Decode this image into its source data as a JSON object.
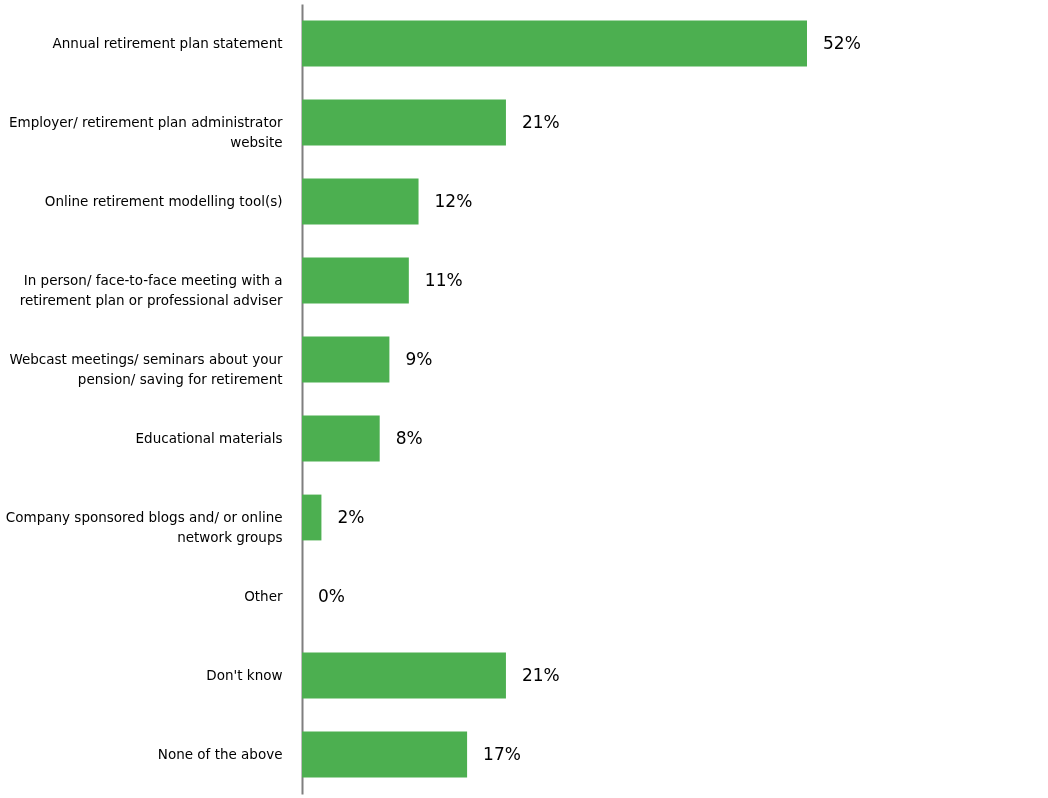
{
  "chart_data": {
    "type": "bar",
    "orientation": "horizontal",
    "categories": [
      "Annual retirement plan statement",
      "Employer/ retirement plan administrator website",
      "Online retirement modelling tool(s)",
      "In person/ face-to-face meeting with a retirement plan or professional adviser",
      "Webcast meetings/ seminars about your pension/ saving for retirement",
      "Educational materials",
      "Company sponsored blogs and/ or online network groups",
      "Other",
      "Don't know",
      "None of the above"
    ],
    "values": [
      52,
      21,
      12,
      11,
      9,
      8,
      2,
      0,
      21,
      17
    ],
    "value_labels": [
      "52%",
      "21%",
      "12%",
      "11%",
      "9%",
      "8%",
      "2%",
      "0%",
      "21%",
      "17%"
    ],
    "color": "#4caf50"
  }
}
